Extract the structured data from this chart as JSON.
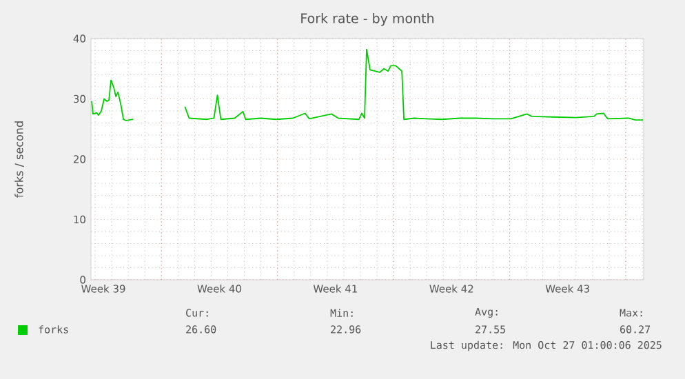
{
  "chart_data": {
    "type": "line",
    "title": "Fork rate - by month",
    "ylabel": "forks / second",
    "xlim": [
      "2025-09-23T18:00",
      "2025-10-27T02:00"
    ],
    "ylim": [
      0,
      40
    ],
    "yticks": [
      0,
      10,
      20,
      30,
      40
    ],
    "xticks": [
      {
        "value": "2025-09-24T12:00",
        "label": "Week 39"
      },
      {
        "value": "2025-10-01T12:00",
        "label": "Week 40"
      },
      {
        "value": "2025-10-08T12:00",
        "label": "Week 41"
      },
      {
        "value": "2025-10-15T12:00",
        "label": "Week 42"
      },
      {
        "value": "2025-10-22T12:00",
        "label": "Week 43"
      },
      {
        "value": "2025-09-28",
        "label": null
      },
      {
        "value": "2025-10-05",
        "label": null
      },
      {
        "value": "2025-10-12",
        "label": null
      },
      {
        "value": "2025-10-19",
        "label": null
      },
      {
        "value": "2025-10-26",
        "label": null
      }
    ],
    "grid": true,
    "legend": "bottom",
    "x": [
      "2025-09-23T19:00",
      "2025-09-23T21:00",
      "2025-09-24T02:00",
      "2025-09-24T05:00",
      "2025-09-24T09:00",
      "2025-09-24T13:00",
      "2025-09-24T17:00",
      "2025-09-24T20:00",
      "2025-09-24T23:00",
      "2025-09-25T03:00",
      "2025-09-25T06:00",
      "2025-09-25T09:00",
      "2025-09-25T13:00",
      "2025-09-25T17:00",
      "2025-09-25T21:00",
      "2025-09-26T07:00",
      "2025-09-27T00:00",
      "2025-09-29T10:00",
      "2025-09-29T16:00",
      "2025-09-30T18:00",
      "2025-10-01T04:00",
      "2025-10-01T09:00",
      "2025-10-01T14:00",
      "2025-10-02T10:00",
      "2025-10-02T22:00",
      "2025-10-03T02:00",
      "2025-10-04T00:00",
      "2025-10-04T22:00",
      "2025-10-05T22:00",
      "2025-10-06T16:00",
      "2025-10-06T22:00",
      "2025-10-08T06:00",
      "2025-10-08T16:00",
      "2025-10-09T22:00",
      "2025-10-10T02:00",
      "2025-10-10T06:00",
      "2025-10-10T09:00",
      "2025-10-10T14:00",
      "2025-10-11T04:00",
      "2025-10-11T10:00",
      "2025-10-11T16:00",
      "2025-10-11T20:00",
      "2025-10-12T03:00",
      "2025-10-12T10:00",
      "2025-10-12T12:00",
      "2025-10-12T15:00",
      "2025-10-13T06:00",
      "2025-10-14T00:00",
      "2025-10-14T22:00",
      "2025-10-16T00:00",
      "2025-10-17T00:00",
      "2025-10-18T00:00",
      "2025-10-19T02:00",
      "2025-10-20T01:00",
      "2025-10-20T08:00",
      "2025-10-21T14:00",
      "2025-10-23T00:00",
      "2025-10-24T02:00",
      "2025-10-24T06:00",
      "2025-10-24T16:00",
      "2025-10-24T22:00",
      "2025-10-26T04:00",
      "2025-10-26T14:00",
      "2025-10-27T01:00"
    ],
    "series": [
      {
        "name": "forks",
        "color": "#00cc00",
        "values": [
          29.6,
          27.5,
          27.7,
          27.3,
          28.0,
          30.0,
          29.6,
          29.8,
          33.1,
          31.9,
          30.4,
          31.1,
          29.2,
          26.6,
          26.4,
          26.6,
          null,
          28.7,
          26.8,
          26.6,
          26.8,
          30.6,
          26.6,
          26.8,
          27.9,
          26.6,
          26.8,
          26.6,
          26.8,
          27.6,
          26.7,
          27.5,
          26.8,
          26.6,
          27.6,
          26.8,
          38.2,
          34.8,
          34.4,
          35.0,
          34.6,
          35.5,
          35.5,
          34.8,
          34.6,
          26.6,
          26.8,
          26.7,
          26.6,
          26.8,
          26.8,
          26.7,
          26.7,
          27.5,
          27.1,
          27.0,
          26.9,
          27.1,
          27.5,
          27.6,
          26.7,
          26.8,
          26.5,
          26.5
        ]
      }
    ],
    "annotations": [
      "Cur:",
      "26.60",
      "Min:",
      "22.96",
      "Avg:",
      "27.55",
      "Max:",
      "60.27",
      "Last update: Mon Oct 27 01:00:06 2025"
    ]
  }
}
